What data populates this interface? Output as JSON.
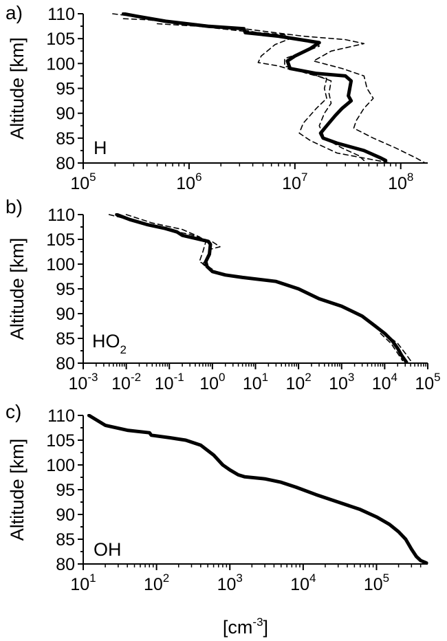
{
  "figure": {
    "x_axis_title": "[cm",
    "x_axis_title_sup": "-3",
    "x_axis_title_end": "]"
  },
  "chart_data": [
    {
      "type": "line",
      "panel_label": "a)",
      "species_label": "H",
      "species_sub": "",
      "ylabel": "Altitude [km]",
      "xscale": "log",
      "xlim": [
        100000,
        180000000
      ],
      "ylim": [
        80,
        110
      ],
      "yticks": [
        80,
        85,
        90,
        95,
        100,
        105,
        110
      ],
      "xticks": [
        {
          "value": 100000,
          "base": "10",
          "exp": "5"
        },
        {
          "value": 1000000,
          "base": "10",
          "exp": "6"
        },
        {
          "value": 10000000,
          "base": "10",
          "exp": "7"
        },
        {
          "value": 100000000,
          "base": "10",
          "exp": "8"
        }
      ],
      "series": [
        {
          "style": "solid",
          "points": [
            [
              240000,
              110
            ],
            [
              320000,
              109.5
            ],
            [
              600000,
              108.5
            ],
            [
              1500000,
              107.5
            ],
            [
              3300000,
              107
            ],
            [
              3400000,
              106.2
            ],
            [
              7000000,
              105.5
            ],
            [
              17000000,
              104.2
            ],
            [
              14000000,
              103
            ],
            [
              10000000,
              101.5
            ],
            [
              8500000,
              100.5
            ],
            [
              9000000,
              99
            ],
            [
              16000000,
              98
            ],
            [
              30000000,
              97.5
            ],
            [
              34000000,
              96.5
            ],
            [
              32000000,
              93.5
            ],
            [
              34000000,
              92.5
            ],
            [
              28000000,
              91
            ],
            [
              24000000,
              89.5
            ],
            [
              20000000,
              87.5
            ],
            [
              17500000,
              86
            ],
            [
              18500000,
              85
            ],
            [
              25000000,
              84
            ],
            [
              45000000,
              82.5
            ],
            [
              65000000,
              81
            ],
            [
              72000000,
              80.5
            ]
          ]
        },
        {
          "style": "dashed",
          "points": [
            [
              190000,
              110
            ],
            [
              700000,
              108.5
            ],
            [
              2500000,
              107.2
            ],
            [
              5000000,
              106
            ],
            [
              10000000,
              104.8
            ],
            [
              16000000,
              104
            ],
            [
              17000000,
              103.5
            ],
            [
              13000000,
              102.5
            ],
            [
              8000000,
              101
            ],
            [
              8000000,
              99.5
            ],
            [
              13000000,
              98
            ],
            [
              20000000,
              97
            ],
            [
              19000000,
              95
            ],
            [
              20000000,
              93
            ],
            [
              16000000,
              91
            ],
            [
              12000000,
              88
            ],
            [
              11000000,
              86
            ],
            [
              14000000,
              84.5
            ],
            [
              25000000,
              82
            ],
            [
              80000000,
              80
            ]
          ]
        },
        {
          "style": "dashed",
          "points": [
            [
              240000,
              109
            ],
            [
              400000,
              108.8
            ],
            [
              1000000,
              108
            ],
            [
              2500000,
              107.3
            ],
            [
              5000000,
              106.5
            ],
            [
              12000000,
              105.5
            ],
            [
              30000000,
              104.8
            ],
            [
              45000000,
              104
            ],
            [
              22000000,
              102.5
            ],
            [
              15000000,
              100.5
            ],
            [
              28000000,
              99
            ],
            [
              45000000,
              97.5
            ],
            [
              48000000,
              95
            ],
            [
              55000000,
              93
            ],
            [
              45000000,
              91
            ],
            [
              38000000,
              88.5
            ],
            [
              36000000,
              87
            ],
            [
              55000000,
              85
            ],
            [
              90000000,
              83
            ],
            [
              140000000,
              81
            ],
            [
              170000000,
              80
            ]
          ]
        },
        {
          "style": "dashed",
          "points": [
            [
              500000,
              108
            ],
            [
              1200000,
              107.5
            ],
            [
              4000000,
              106.3
            ],
            [
              8000000,
              105.8
            ],
            [
              9000000,
              105
            ],
            [
              6500000,
              103.8
            ],
            [
              4800000,
              101.5
            ],
            [
              4500000,
              100.2
            ],
            [
              7000000,
              99.5
            ],
            [
              9000000,
              98.8
            ],
            [
              14000000,
              98
            ],
            [
              22000000,
              96.5
            ],
            [
              21000000,
              94
            ],
            [
              22000000,
              92
            ],
            [
              19000000,
              90
            ],
            [
              17000000,
              87.5
            ],
            [
              19000000,
              85
            ],
            [
              28000000,
              83
            ],
            [
              40000000,
              81.5
            ],
            [
              45000000,
              80.5
            ]
          ]
        }
      ]
    },
    {
      "type": "line",
      "panel_label": "b)",
      "species_label": "HO",
      "species_sub": "2",
      "ylabel": "Altitude [km]",
      "xscale": "log",
      "xlim": [
        0.001,
        100000
      ],
      "ylim": [
        80,
        110
      ],
      "yticks": [
        80,
        85,
        90,
        95,
        100,
        105,
        110
      ],
      "xticks": [
        {
          "value": 0.001,
          "base": "10",
          "exp": "-3"
        },
        {
          "value": 0.01,
          "base": "10",
          "exp": "-2"
        },
        {
          "value": 0.1,
          "base": "10",
          "exp": "-1"
        },
        {
          "value": 1,
          "base": "10",
          "exp": "0"
        },
        {
          "value": 10,
          "base": "10",
          "exp": "1"
        },
        {
          "value": 100,
          "base": "10",
          "exp": "2"
        },
        {
          "value": 1000,
          "base": "10",
          "exp": "3"
        },
        {
          "value": 10000,
          "base": "10",
          "exp": "4"
        },
        {
          "value": 100000,
          "base": "10",
          "exp": "5"
        }
      ],
      "series": [
        {
          "style": "solid",
          "points": [
            [
              0.006,
              110
            ],
            [
              0.012,
              109
            ],
            [
              0.03,
              108
            ],
            [
              0.08,
              107.2
            ],
            [
              0.15,
              106.5
            ],
            [
              0.2,
              105.8
            ],
            [
              0.4,
              105.2
            ],
            [
              0.8,
              104.6
            ],
            [
              0.9,
              104
            ],
            [
              0.85,
              102
            ],
            [
              0.7,
              100.5
            ],
            [
              0.75,
              99.5
            ],
            [
              1.0,
              98.5
            ],
            [
              2,
              97.8
            ],
            [
              5,
              97.3
            ],
            [
              30,
              96.5
            ],
            [
              100,
              95
            ],
            [
              300,
              93
            ],
            [
              1000,
              91.5
            ],
            [
              3000,
              89.5
            ],
            [
              6000,
              87.5
            ],
            [
              10000,
              86
            ],
            [
              15000,
              84.5
            ],
            [
              20000,
              83
            ],
            [
              25000,
              81.5
            ],
            [
              32000,
              80.2
            ]
          ]
        },
        {
          "style": "dashed",
          "points": [
            [
              0.004,
              110
            ],
            [
              0.02,
              108.5
            ],
            [
              0.08,
              107
            ],
            [
              0.3,
              106
            ],
            [
              1.0,
              104.5
            ],
            [
              1.5,
              103.5
            ],
            [
              0.9,
              103
            ],
            [
              0.7,
              101
            ],
            [
              0.6,
              100
            ],
            [
              1.0,
              98.5
            ]
          ]
        },
        {
          "style": "dashed",
          "points": [
            [
              0.01,
              110
            ],
            [
              0.04,
              108.3
            ],
            [
              0.2,
              107
            ],
            [
              0.5,
              105.5
            ],
            [
              0.7,
              104.5
            ],
            [
              0.6,
              102.5
            ],
            [
              0.5,
              100.5
            ],
            [
              0.8,
              99.5
            ],
            [
              1.2,
              98.5
            ]
          ]
        },
        {
          "style": "dashed",
          "points": [
            [
              10000,
              86
            ],
            [
              20000,
              84
            ],
            [
              30000,
              82
            ],
            [
              40000,
              80.5
            ]
          ]
        },
        {
          "style": "dashed",
          "points": [
            [
              8000,
              86
            ],
            [
              14000,
              84
            ],
            [
              20000,
              82
            ],
            [
              26000,
              80.5
            ]
          ]
        }
      ]
    },
    {
      "type": "line",
      "panel_label": "c)",
      "species_label": "OH",
      "species_sub": "",
      "ylabel": "Altitude [km]",
      "xscale": "log",
      "xlim": [
        10,
        500000
      ],
      "ylim": [
        80,
        110
      ],
      "yticks": [
        80,
        85,
        90,
        95,
        100,
        105,
        110
      ],
      "xticks": [
        {
          "value": 10,
          "base": "10",
          "exp": "1"
        },
        {
          "value": 100,
          "base": "10",
          "exp": "2"
        },
        {
          "value": 1000,
          "base": "10",
          "exp": "3"
        },
        {
          "value": 10000,
          "base": "10",
          "exp": "4"
        },
        {
          "value": 100000,
          "base": "10",
          "exp": "5"
        }
      ],
      "series": [
        {
          "style": "solid",
          "points": [
            [
              12,
              110
            ],
            [
              20,
              108
            ],
            [
              40,
              107
            ],
            [
              80,
              106.5
            ],
            [
              85,
              106
            ],
            [
              150,
              105.5
            ],
            [
              250,
              105
            ],
            [
              400,
              104
            ],
            [
              600,
              102
            ],
            [
              800,
              100
            ],
            [
              1000,
              99
            ],
            [
              1300,
              98
            ],
            [
              1600,
              97.6
            ],
            [
              3000,
              97.2
            ],
            [
              5000,
              96.5
            ],
            [
              8000,
              95.5
            ],
            [
              15000,
              94
            ],
            [
              30000,
              92.5
            ],
            [
              60000,
              91
            ],
            [
              100000,
              89.5
            ],
            [
              150000,
              88
            ],
            [
              200000,
              86.5
            ],
            [
              250000,
              85
            ],
            [
              300000,
              83
            ],
            [
              350000,
              81.5
            ],
            [
              400000,
              80.7
            ],
            [
              480000,
              80.2
            ]
          ]
        }
      ]
    }
  ]
}
